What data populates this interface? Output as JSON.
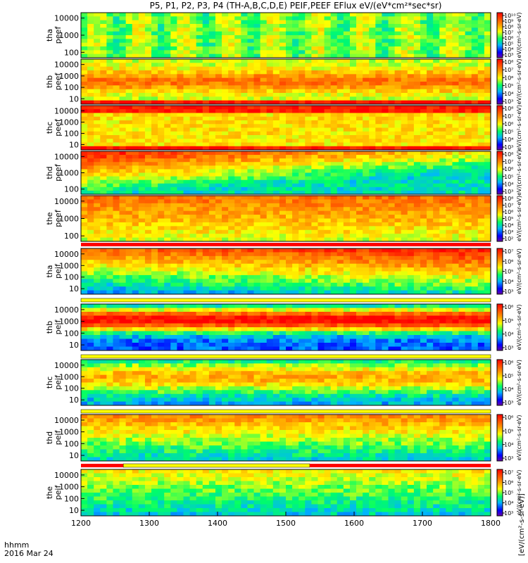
{
  "chart_data": {
    "type": "heatmap",
    "title": "P5, P1, P2, P3, P4 (TH-A,B,C,D,E) PEIF,PEEF EFlux eV/(eV*cm²*sec*sr)",
    "x_ticks": [
      "1200",
      "1300",
      "1400",
      "1500",
      "1600",
      "1700",
      "1800"
    ],
    "x_range": [
      1200,
      1800
    ],
    "footer": {
      "line1": "hhmm",
      "line2": "2016 Mar 24"
    },
    "colorbar_unit_label": "[eV/(cm²-s-sr-eV)]",
    "colorbar_repeated_label": "eV/(cm²-s-sr-eV)",
    "panels": [
      {
        "probe": "tha",
        "species": "peef",
        "yticks": [
          "10000",
          "1000",
          "100"
        ],
        "cbar_ticks": [
          "10¹⁰",
          "10⁹",
          "10⁸",
          "10⁷",
          "10⁶",
          "10⁵",
          "10⁴",
          "10³"
        ],
        "flag": "none"
      },
      {
        "probe": "thb",
        "species": "peef",
        "yticks": [
          "10000",
          "1000",
          "100",
          "10"
        ],
        "cbar_ticks": [
          "10⁸",
          "10⁷",
          "10⁶",
          "10⁵",
          "10⁴",
          "10³"
        ],
        "flag": "none"
      },
      {
        "probe": "thc",
        "species": "peef",
        "yticks": [
          "10000",
          "1000",
          "100",
          "10"
        ],
        "cbar_ticks": [
          "10⁸",
          "10⁷",
          "10⁶",
          "10⁵",
          "10⁴",
          "10³"
        ],
        "flag": "none"
      },
      {
        "probe": "thd",
        "species": "peef",
        "yticks": [
          "10000",
          "1000",
          "100"
        ],
        "cbar_ticks": [
          "10⁸",
          "10⁷",
          "10⁶",
          "10⁵",
          "10⁴",
          "10³"
        ],
        "flag": "none"
      },
      {
        "probe": "the",
        "species": "peef",
        "yticks": [
          "10000",
          "1000",
          "100"
        ],
        "cbar_ticks": [
          "10⁸",
          "10⁷",
          "10⁶",
          "10⁵",
          "10⁴",
          "10³",
          "10²"
        ],
        "flag": "red"
      },
      {
        "probe": "tha",
        "species": "peif",
        "yticks": [
          "10000",
          "1000",
          "100",
          "10"
        ],
        "cbar_ticks": [
          "10⁷",
          "10⁶",
          "10⁵",
          "10⁴",
          "10³"
        ],
        "flag": "yellow"
      },
      {
        "probe": "thb",
        "species": "peif",
        "yticks": [
          "10000",
          "1000",
          "100",
          "10"
        ],
        "cbar_ticks": [
          "10⁶",
          "10⁵",
          "10⁴",
          "10³"
        ],
        "flag": "yellow"
      },
      {
        "probe": "thc",
        "species": "peif",
        "yticks": [
          "10000",
          "1000",
          "100",
          "10"
        ],
        "cbar_ticks": [
          "10⁶",
          "10⁵",
          "10⁴",
          "10³"
        ],
        "flag": "yellow"
      },
      {
        "probe": "thd",
        "species": "peif",
        "yticks": [
          "10000",
          "1000",
          "100",
          "10"
        ],
        "cbar_ticks": [
          "10⁶",
          "10⁵",
          "10⁴",
          "10³"
        ],
        "flag": "red-split"
      },
      {
        "probe": "the",
        "species": "peif",
        "yticks": [
          "10000",
          "1000",
          "100",
          "10"
        ],
        "cbar_ticks": [
          "10⁷",
          "10⁶",
          "10⁵",
          "10⁴",
          "10³"
        ],
        "flag": "none"
      }
    ]
  }
}
